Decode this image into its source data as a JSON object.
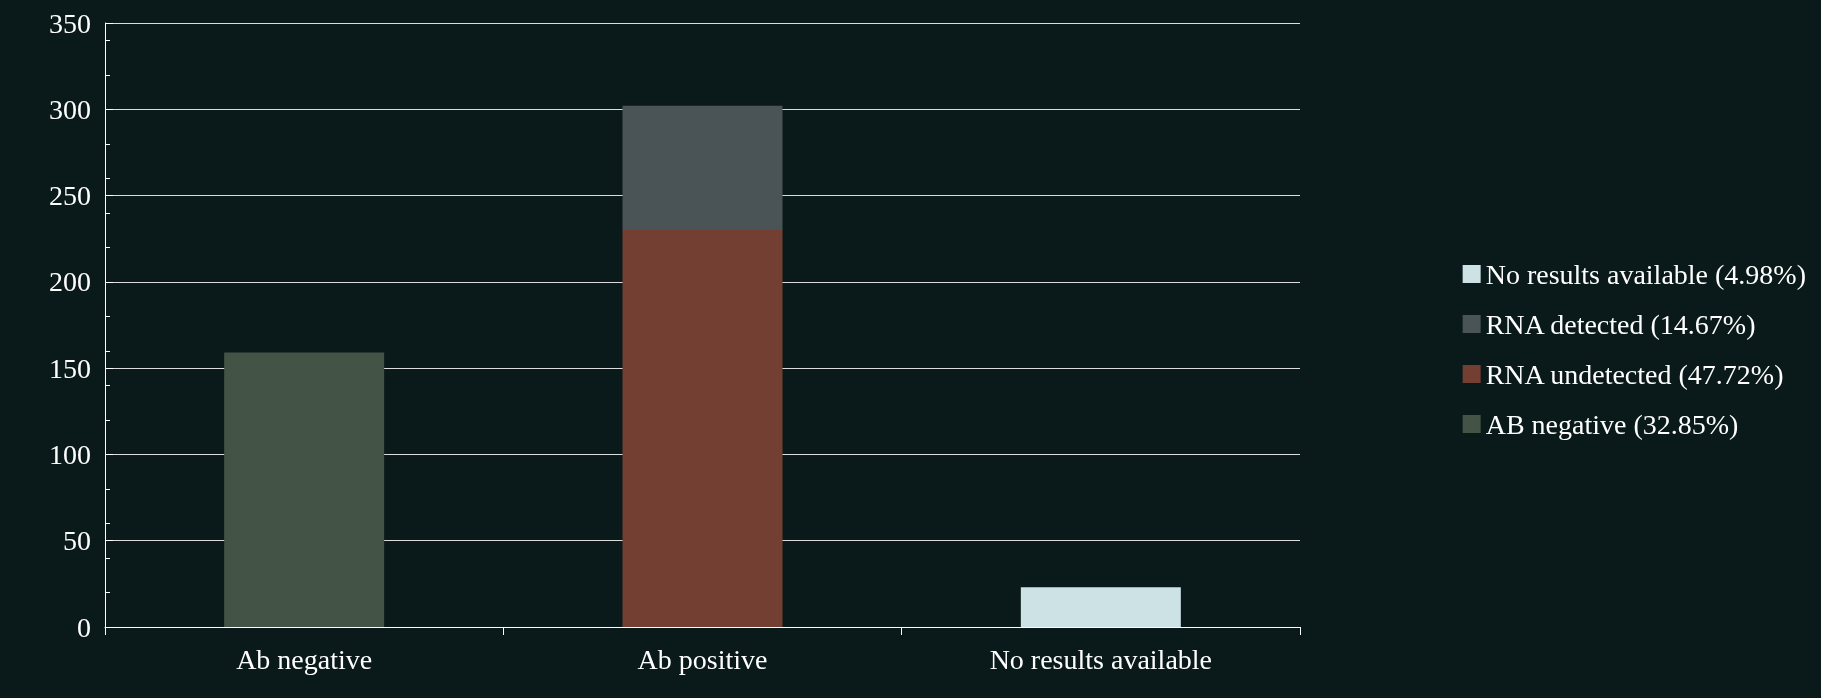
{
  "chart_data": {
    "type": "bar",
    "stacked": true,
    "categories": [
      "Ab negative",
      "Ab positive",
      "No results available"
    ],
    "series": [
      {
        "name": "AB negative (32.85%)",
        "color": "#435346",
        "values": [
          159,
          null,
          null
        ]
      },
      {
        "name": "RNA undetected (47.72%)",
        "color": "#733f33",
        "values": [
          null,
          230,
          null
        ]
      },
      {
        "name": "RNA detected (14.67%)",
        "color": "#4a5356",
        "values": [
          null,
          72,
          null
        ]
      },
      {
        "name": "No results available (4.98%)",
        "color": "#cde2e5",
        "values": [
          null,
          null,
          23
        ]
      }
    ],
    "ylim": [
      0,
      350
    ],
    "yticks": [
      0,
      50,
      100,
      150,
      200,
      250,
      300,
      350
    ],
    "grid": "y",
    "legend": "right"
  }
}
